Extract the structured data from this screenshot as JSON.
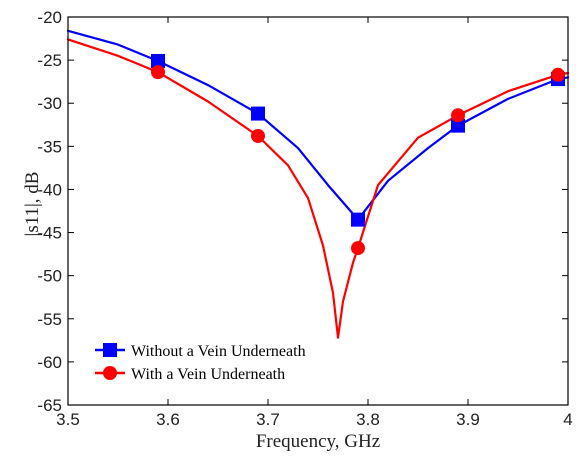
{
  "chart_data": {
    "type": "line",
    "xlabel": "Frequency, GHz",
    "ylabel": "|s11|, dB",
    "xlim": [
      3.5,
      4.0
    ],
    "ylim": [
      -65,
      -20
    ],
    "xticks": [
      "3.5",
      "3.6",
      "3.7",
      "3.8",
      "3.9",
      "4"
    ],
    "yticks": [
      "-20",
      "-25",
      "-30",
      "-35",
      "-40",
      "-45",
      "-50",
      "-55",
      "-60",
      "-65"
    ],
    "grid": false,
    "legend_position": "bottom-left",
    "series": [
      {
        "name": "Without a Vein Underneath",
        "color": "#0000ff",
        "marker": "square",
        "x": [
          3.5,
          3.55,
          3.59,
          3.64,
          3.69,
          3.73,
          3.76,
          3.79,
          3.82,
          3.86,
          3.89,
          3.94,
          3.99,
          4.0
        ],
        "y": [
          -21.6,
          -23.2,
          -25.1,
          -27.9,
          -31.2,
          -35.2,
          -39.5,
          -43.5,
          -39.0,
          -35.2,
          -32.6,
          -29.5,
          -27.2,
          -27.0
        ],
        "marker_x": [
          3.59,
          3.69,
          3.79,
          3.89,
          3.99
        ],
        "marker_y": [
          -25.1,
          -31.2,
          -43.5,
          -32.6,
          -27.2
        ]
      },
      {
        "name": "With a Vein Underneath",
        "color": "#ff0000",
        "marker": "circle",
        "x": [
          3.5,
          3.55,
          3.59,
          3.64,
          3.69,
          3.72,
          3.74,
          3.755,
          3.765,
          3.77,
          3.775,
          3.785,
          3.79,
          3.81,
          3.85,
          3.89,
          3.94,
          3.99,
          4.0
        ],
        "y": [
          -22.6,
          -24.5,
          -26.4,
          -29.8,
          -33.8,
          -37.2,
          -41.0,
          -46.5,
          -52.0,
          -57.2,
          -53.0,
          -48.5,
          -46.8,
          -39.5,
          -34.0,
          -31.4,
          -28.6,
          -26.7,
          -26.5
        ],
        "marker_x": [
          3.59,
          3.69,
          3.79,
          3.89,
          3.99
        ],
        "marker_y": [
          -26.4,
          -33.8,
          -46.8,
          -31.4,
          -26.7
        ]
      }
    ]
  }
}
